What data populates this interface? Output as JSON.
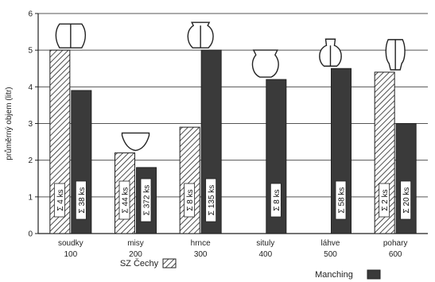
{
  "chart_data": {
    "type": "bar",
    "ylabel": "průměrný objem (litr)",
    "ylim": [
      0,
      6
    ],
    "yticks": [
      "0",
      "1",
      "2",
      "3",
      "4",
      "5",
      "6"
    ],
    "grid": true,
    "categories": [
      "soudky",
      "misy",
      "hrnce",
      "situly",
      "láhve",
      "pohary"
    ],
    "category_codes": [
      "100",
      "200",
      "300",
      "400",
      "500",
      "600"
    ],
    "series": [
      {
        "name": "SZ Čechy",
        "pattern": "hatch",
        "values": [
          5.0,
          2.2,
          2.9,
          null,
          null,
          4.4
        ],
        "counts": [
          "Σ 4 ks",
          "Σ 44 ks",
          "Σ 8 ks",
          null,
          null,
          "Σ 2 ks"
        ]
      },
      {
        "name": "Manching",
        "color": "#3a3a3a",
        "values": [
          3.9,
          1.8,
          5.0,
          4.2,
          4.5,
          3.0
        ],
        "counts": [
          "Σ 38 ks",
          "Σ 372 ks",
          "Σ 135 ks",
          "Σ 8 ks",
          "Σ 58 ks",
          "Σ 20 ks"
        ]
      }
    ],
    "legend": {
      "placement": "bottom"
    }
  }
}
